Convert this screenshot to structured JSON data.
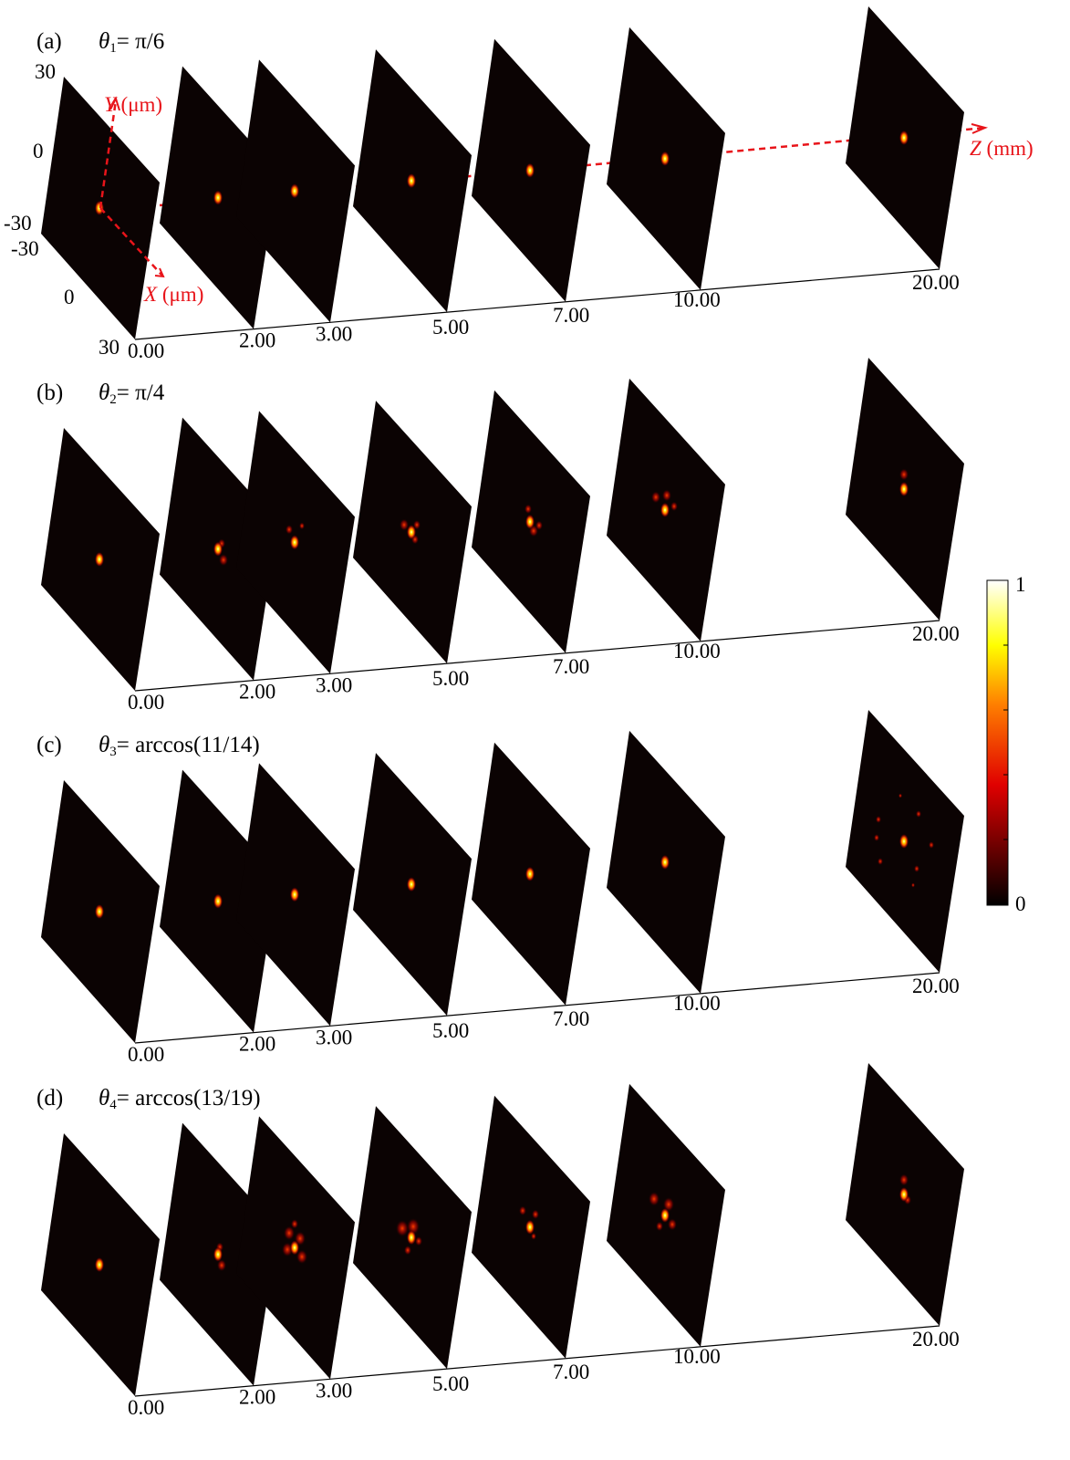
{
  "rows": [
    {
      "tag": "(a)",
      "theta_symbol": "θ",
      "theta_index": "1",
      "theta_value": "= π/6"
    },
    {
      "tag": "(b)",
      "theta_symbol": "θ",
      "theta_index": "2",
      "theta_value": "= π/4"
    },
    {
      "tag": "(c)",
      "theta_symbol": "θ",
      "theta_index": "3",
      "theta_value": "= arccos(11/14)"
    },
    {
      "tag": "(d)",
      "theta_symbol": "θ",
      "theta_index": "4",
      "theta_value": "= arccos(13/19)"
    }
  ],
  "z_values": [
    0,
    2,
    3,
    5,
    7,
    10,
    20
  ],
  "z_labels": [
    "0.00",
    "2.00",
    "3.00",
    "5.00",
    "7.00",
    "10.00",
    "20.00"
  ],
  "axes": {
    "x_label_var": "X",
    "x_label_unit": " (μm)",
    "y_label_var": "Y",
    "y_label_unit": " (μm)",
    "z_label_var": "Z",
    "z_label_unit": " (mm)",
    "y_ticks": [
      "30",
      "0",
      "-30"
    ],
    "x_ticks": [
      "-30",
      "0",
      "30"
    ],
    "axis_color": "#e8141a"
  },
  "colorbar": {
    "max_label": "1",
    "min_label": "0",
    "colormap": "hot"
  }
}
